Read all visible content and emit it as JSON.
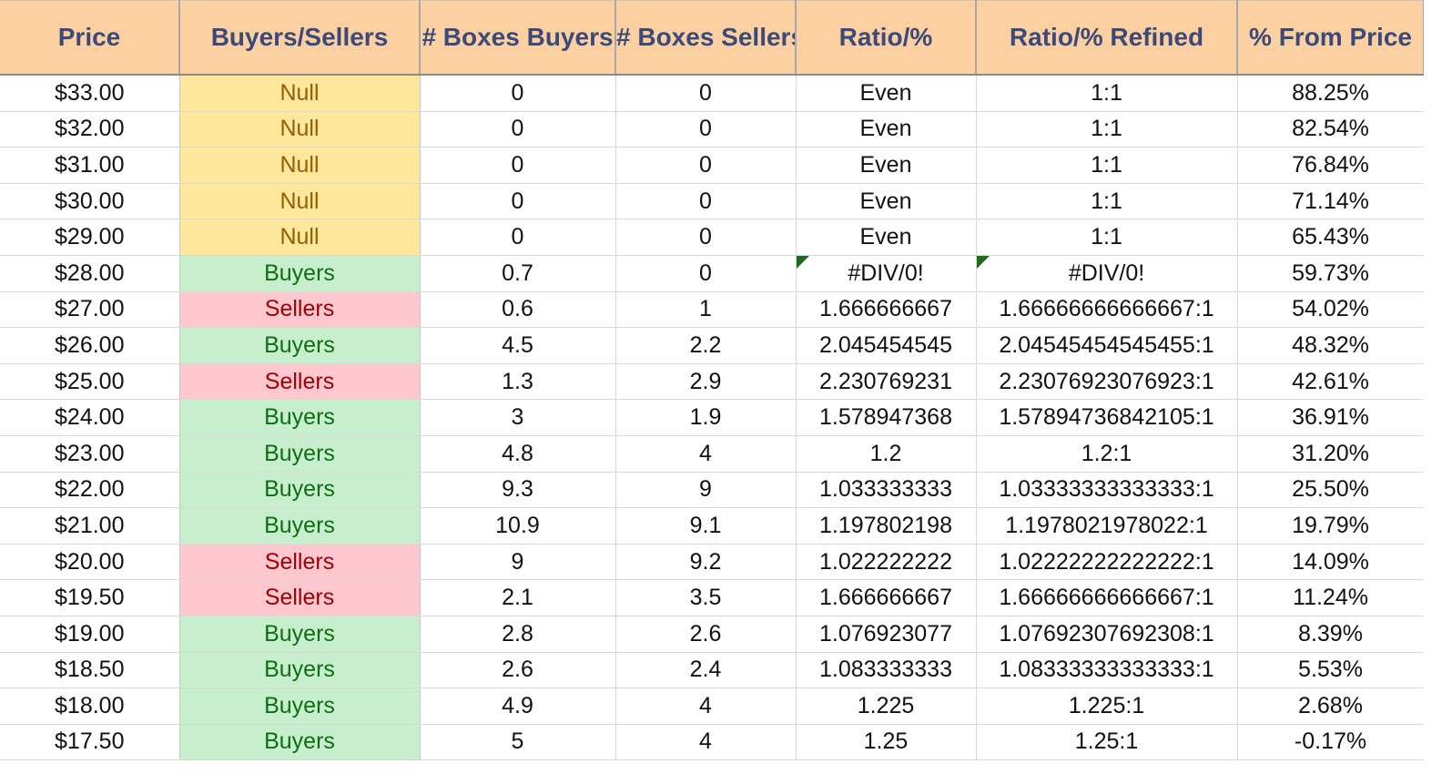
{
  "headers": {
    "price": "Price",
    "buyers_sellers": "Buyers/Sellers",
    "boxes_buyers": "# Boxes Buyers",
    "boxes_sellers": "# Boxes Sellers",
    "ratio": "Ratio/%",
    "ratio_refined": "Ratio/% Refined",
    "pct_from_price": "% From Price"
  },
  "rows": [
    {
      "price": "$33.00",
      "bs": "Null",
      "bs_type": "null",
      "buyers": "0",
      "sellers": "0",
      "ratio": "Even",
      "refined": "1:1",
      "pct": "88.25%",
      "error": false
    },
    {
      "price": "$32.00",
      "bs": "Null",
      "bs_type": "null",
      "buyers": "0",
      "sellers": "0",
      "ratio": "Even",
      "refined": "1:1",
      "pct": "82.54%",
      "error": false
    },
    {
      "price": "$31.00",
      "bs": "Null",
      "bs_type": "null",
      "buyers": "0",
      "sellers": "0",
      "ratio": "Even",
      "refined": "1:1",
      "pct": "76.84%",
      "error": false
    },
    {
      "price": "$30.00",
      "bs": "Null",
      "bs_type": "null",
      "buyers": "0",
      "sellers": "0",
      "ratio": "Even",
      "refined": "1:1",
      "pct": "71.14%",
      "error": false
    },
    {
      "price": "$29.00",
      "bs": "Null",
      "bs_type": "null",
      "buyers": "0",
      "sellers": "0",
      "ratio": "Even",
      "refined": "1:1",
      "pct": "65.43%",
      "error": false
    },
    {
      "price": "$28.00",
      "bs": "Buyers",
      "bs_type": "buyers",
      "buyers": "0.7",
      "sellers": "0",
      "ratio": "#DIV/0!",
      "refined": "#DIV/0!",
      "pct": "59.73%",
      "error": true
    },
    {
      "price": "$27.00",
      "bs": "Sellers",
      "bs_type": "sellers",
      "buyers": "0.6",
      "sellers": "1",
      "ratio": "1.666666667",
      "refined": "1.66666666666667:1",
      "pct": "54.02%",
      "error": false
    },
    {
      "price": "$26.00",
      "bs": "Buyers",
      "bs_type": "buyers",
      "buyers": "4.5",
      "sellers": "2.2",
      "ratio": "2.045454545",
      "refined": "2.04545454545455:1",
      "pct": "48.32%",
      "error": false
    },
    {
      "price": "$25.00",
      "bs": "Sellers",
      "bs_type": "sellers",
      "buyers": "1.3",
      "sellers": "2.9",
      "ratio": "2.230769231",
      "refined": "2.23076923076923:1",
      "pct": "42.61%",
      "error": false
    },
    {
      "price": "$24.00",
      "bs": "Buyers",
      "bs_type": "buyers",
      "buyers": "3",
      "sellers": "1.9",
      "ratio": "1.578947368",
      "refined": "1.57894736842105:1",
      "pct": "36.91%",
      "error": false
    },
    {
      "price": "$23.00",
      "bs": "Buyers",
      "bs_type": "buyers",
      "buyers": "4.8",
      "sellers": "4",
      "ratio": "1.2",
      "refined": "1.2:1",
      "pct": "31.20%",
      "error": false
    },
    {
      "price": "$22.00",
      "bs": "Buyers",
      "bs_type": "buyers",
      "buyers": "9.3",
      "sellers": "9",
      "ratio": "1.033333333",
      "refined": "1.03333333333333:1",
      "pct": "25.50%",
      "error": false
    },
    {
      "price": "$21.00",
      "bs": "Buyers",
      "bs_type": "buyers",
      "buyers": "10.9",
      "sellers": "9.1",
      "ratio": "1.197802198",
      "refined": "1.1978021978022:1",
      "pct": "19.79%",
      "error": false
    },
    {
      "price": "$20.00",
      "bs": "Sellers",
      "bs_type": "sellers",
      "buyers": "9",
      "sellers": "9.2",
      "ratio": "1.022222222",
      "refined": "1.02222222222222:1",
      "pct": "14.09%",
      "error": false
    },
    {
      "price": "$19.50",
      "bs": "Sellers",
      "bs_type": "sellers",
      "buyers": "2.1",
      "sellers": "3.5",
      "ratio": "1.666666667",
      "refined": "1.66666666666667:1",
      "pct": "11.24%",
      "error": false
    },
    {
      "price": "$19.00",
      "bs": "Buyers",
      "bs_type": "buyers",
      "buyers": "2.8",
      "sellers": "2.6",
      "ratio": "1.076923077",
      "refined": "1.07692307692308:1",
      "pct": "8.39%",
      "error": false
    },
    {
      "price": "$18.50",
      "bs": "Buyers",
      "bs_type": "buyers",
      "buyers": "2.6",
      "sellers": "2.4",
      "ratio": "1.083333333",
      "refined": "1.08333333333333:1",
      "pct": "5.53%",
      "error": false
    },
    {
      "price": "$18.00",
      "bs": "Buyers",
      "bs_type": "buyers",
      "buyers": "4.9",
      "sellers": "4",
      "ratio": "1.225",
      "refined": "1.225:1",
      "pct": "2.68%",
      "error": false
    },
    {
      "price": "$17.50",
      "bs": "Buyers",
      "bs_type": "buyers",
      "buyers": "5",
      "sellers": "4",
      "ratio": "1.25",
      "refined": "1.25:1",
      "pct": "-0.17%",
      "error": false
    }
  ],
  "colors": {
    "header_bg": "#fdd0a2",
    "header_text": "#3c4a7a",
    "null_bg": "#ffe79c",
    "null_text": "#9a5c00",
    "buyers_bg": "#c7efcd",
    "buyers_text": "#0e6e12",
    "sellers_bg": "#ffc7ce",
    "sellers_text": "#9c0006",
    "error_marker": "#1e6b1e"
  }
}
